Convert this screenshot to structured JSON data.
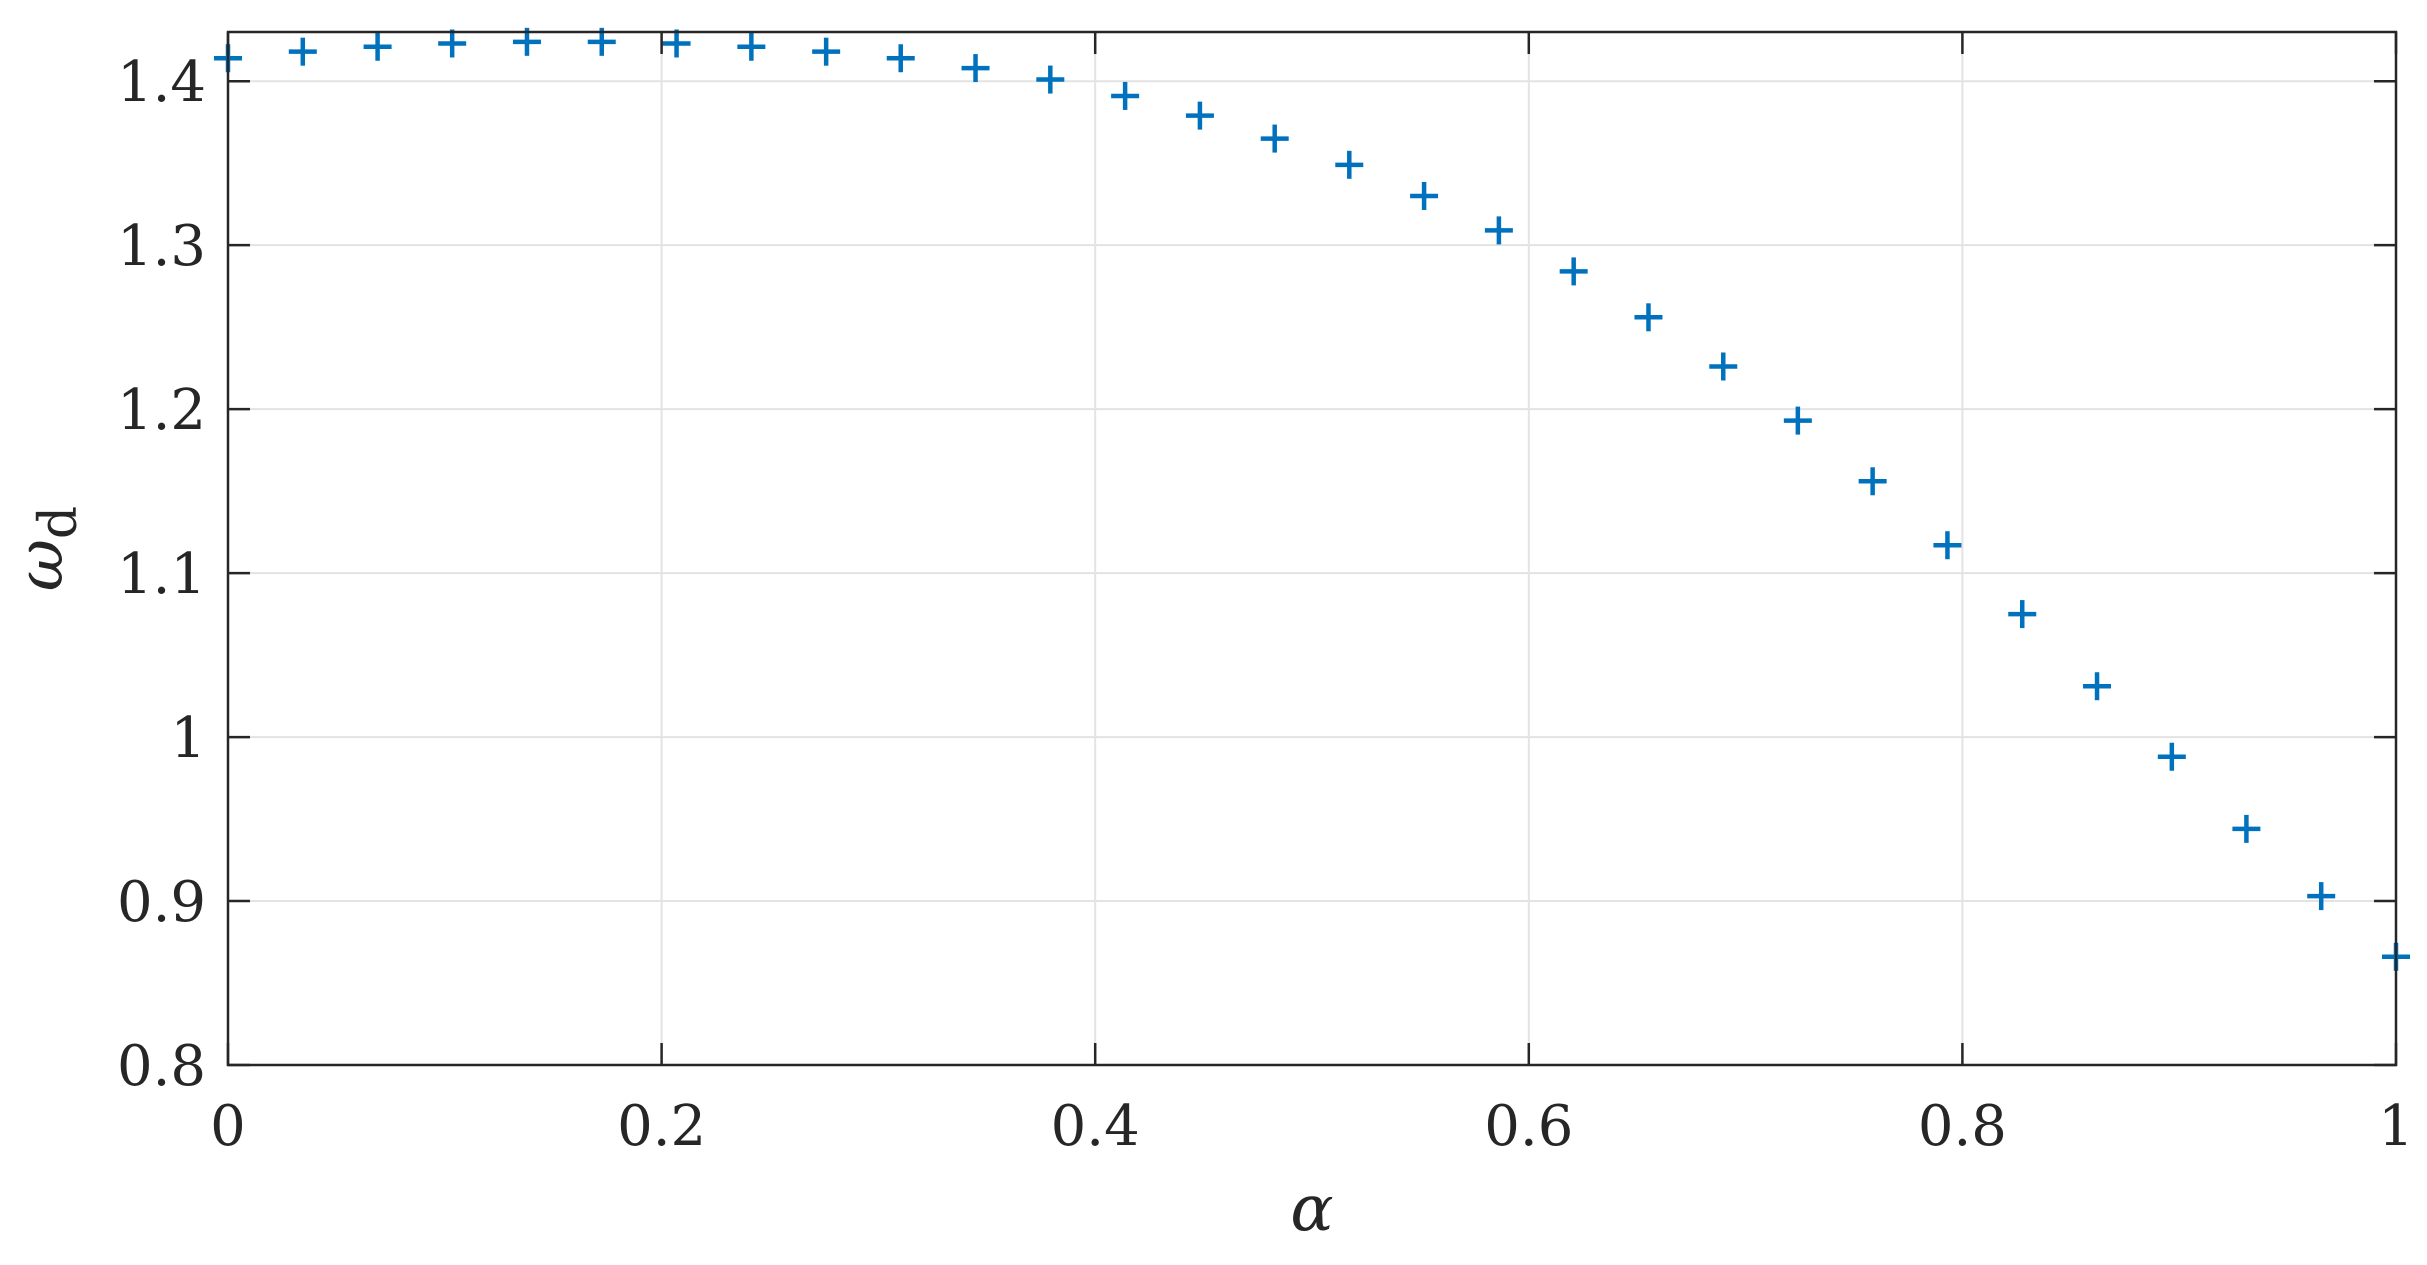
{
  "chart_data": {
    "type": "scatter",
    "marker": "plus",
    "marker_color": "#0072BD",
    "grid": true,
    "xlabel": "α",
    "ylabel_symbol": "ω",
    "ylabel_subscript": "d",
    "xlim": [
      0,
      1
    ],
    "ylim": [
      0.8,
      1.43
    ],
    "xticks": [
      0,
      0.2,
      0.4,
      0.6,
      0.8,
      1
    ],
    "xtick_labels": [
      "0",
      "0.2",
      "0.4",
      "0.6",
      "0.8",
      "1"
    ],
    "yticks": [
      0.8,
      0.9,
      1.0,
      1.1,
      1.2,
      1.3,
      1.4
    ],
    "ytick_labels": [
      "0.8",
      "0.9",
      "1",
      "1.1",
      "1.2",
      "1.3",
      "1.4"
    ],
    "series": [
      {
        "x": [
          0,
          0.0345,
          0.069,
          0.1034,
          0.1379,
          0.1724,
          0.2069,
          0.2414,
          0.2759,
          0.3103,
          0.3448,
          0.3793,
          0.4138,
          0.4483,
          0.4828,
          0.5172,
          0.5517,
          0.5862,
          0.6207,
          0.6552,
          0.6897,
          0.7241,
          0.7586,
          0.7931,
          0.8276,
          0.8621,
          0.8966,
          0.931,
          0.9655,
          1.0
        ],
        "y": [
          1.414,
          1.418,
          1.421,
          1.423,
          1.424,
          1.424,
          1.423,
          1.421,
          1.418,
          1.414,
          1.408,
          1.401,
          1.391,
          1.379,
          1.365,
          1.349,
          1.33,
          1.309,
          1.284,
          1.256,
          1.226,
          1.193,
          1.156,
          1.117,
          1.075,
          1.031,
          0.988,
          0.944,
          0.903,
          0.866
        ]
      }
    ]
  }
}
